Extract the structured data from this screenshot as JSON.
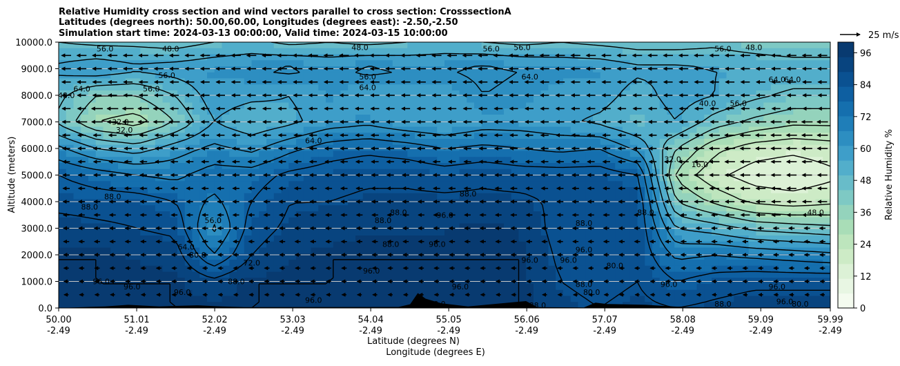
{
  "chart_data": {
    "type": "contourf",
    "title": [
      "Relative Humidity cross section and wind vectors parallel to cross section: CrosssectionA",
      "Latitudes (degrees north): 50.00,60.00, Longitudes (degrees east): -2.50,-2.50",
      "Simulation start time: 2024-03-13 00:00:00, Valid time: 2024-03-15 10:00:00"
    ],
    "xlabel": [
      "Latitude (degrees N)",
      "Longitude (degrees E)"
    ],
    "ylabel": "Altitude (meters)",
    "xlim": [
      50.0,
      59.99
    ],
    "ylim": [
      0,
      10000
    ],
    "x_ticks": [
      {
        "lat": "50.00",
        "lon": "-2.49",
        "value": 50.0
      },
      {
        "lat": "51.01",
        "lon": "-2.49",
        "value": 51.01
      },
      {
        "lat": "52.02",
        "lon": "-2.49",
        "value": 52.02
      },
      {
        "lat": "53.03",
        "lon": "-2.49",
        "value": 53.03
      },
      {
        "lat": "54.04",
        "lon": "-2.49",
        "value": 54.04
      },
      {
        "lat": "55.05",
        "lon": "-2.49",
        "value": 55.05
      },
      {
        "lat": "56.06",
        "lon": "-2.49",
        "value": 56.06
      },
      {
        "lat": "57.07",
        "lon": "-2.49",
        "value": 57.07
      },
      {
        "lat": "58.08",
        "lon": "-2.49",
        "value": 58.08
      },
      {
        "lat": "59.09",
        "lon": "-2.49",
        "value": 59.09
      },
      {
        "lat": "59.99",
        "lon": "-2.49",
        "value": 59.99
      }
    ],
    "y_ticks": [
      {
        "label": "0.0",
        "value": 0
      },
      {
        "label": "1000.0",
        "value": 1000
      },
      {
        "label": "2000.0",
        "value": 2000
      },
      {
        "label": "3000.0",
        "value": 3000
      },
      {
        "label": "4000.0",
        "value": 4000
      },
      {
        "label": "5000.0",
        "value": 5000
      },
      {
        "label": "6000.0",
        "value": 6000
      },
      {
        "label": "7000.0",
        "value": 7000
      },
      {
        "label": "8000.0",
        "value": 8000
      },
      {
        "label": "9000.0",
        "value": 9000
      },
      {
        "label": "10000.0",
        "value": 10000
      }
    ],
    "colorbar": {
      "label": "Relative Humidity %",
      "min": 0,
      "max": 100,
      "ticks": [
        0,
        12,
        24,
        36,
        48,
        60,
        72,
        84,
        96
      ],
      "colors": [
        "#f4fbef",
        "#e8f6e3",
        "#dcf1d6",
        "#cdebc6",
        "#bde5bd",
        "#a9ddb7",
        "#94d3bc",
        "#7ec9c4",
        "#68bcc9",
        "#52aecb",
        "#3e9ec9",
        "#2d8ec1",
        "#1f7eb8",
        "#156fae",
        "#0e5fa1",
        "#0a5191",
        "#08447f",
        "#083a70"
      ]
    },
    "reference_vector": {
      "label": "25 m/s",
      "speed": 25
    },
    "rh_columns": {
      "lat": [
        50.0,
        50.5,
        51.0,
        51.5,
        52.0,
        52.5,
        53.0,
        53.5,
        54.0,
        54.5,
        55.0,
        55.5,
        56.0,
        56.5,
        57.0,
        57.5,
        58.0,
        58.5,
        59.0,
        59.5,
        59.99
      ],
      "altitude": [
        0,
        1000,
        2000,
        3000,
        4000,
        5000,
        6000,
        7000,
        8000,
        9000,
        10000
      ],
      "rh": [
        [
          96,
          96,
          96,
          92,
          85,
          80,
          66,
          46,
          50,
          58,
          48
        ],
        [
          96,
          96,
          96,
          90,
          84,
          76,
          56,
          32,
          40,
          62,
          46
        ],
        [
          96,
          96,
          94,
          88,
          84,
          72,
          52,
          28,
          40,
          58,
          46
        ],
        [
          96,
          96,
          92,
          86,
          80,
          70,
          60,
          40,
          48,
          60,
          44
        ],
        [
          96,
          90,
          72,
          62,
          70,
          76,
          66,
          56,
          60,
          62,
          48
        ],
        [
          96,
          96,
          88,
          84,
          80,
          76,
          62,
          50,
          58,
          64,
          50
        ],
        [
          96,
          96,
          94,
          90,
          88,
          82,
          70,
          54,
          56,
          66,
          46
        ],
        [
          96,
          96,
          96,
          92,
          88,
          84,
          76,
          60,
          62,
          62,
          48
        ],
        [
          96,
          96,
          96,
          94,
          90,
          86,
          78,
          62,
          58,
          66,
          46
        ],
        [
          96,
          96,
          96,
          94,
          90,
          86,
          76,
          58,
          60,
          64,
          48
        ],
        [
          96,
          96,
          96,
          94,
          90,
          84,
          72,
          56,
          58,
          64,
          50
        ],
        [
          96,
          96,
          96,
          96,
          90,
          86,
          74,
          60,
          64,
          66,
          48
        ],
        [
          96,
          96,
          96,
          94,
          90,
          84,
          72,
          60,
          62,
          64,
          46
        ],
        [
          90,
          88,
          86,
          84,
          86,
          84,
          70,
          58,
          60,
          62,
          48
        ],
        [
          88,
          86,
          84,
          86,
          88,
          84,
          72,
          54,
          60,
          62,
          46
        ],
        [
          90,
          88,
          86,
          86,
          86,
          80,
          62,
          48,
          52,
          58,
          44
        ],
        [
          88,
          80,
          70,
          56,
          40,
          30,
          40,
          56,
          60,
          58,
          44
        ],
        [
          90,
          84,
          72,
          52,
          30,
          18,
          26,
          44,
          56,
          56,
          46
        ],
        [
          92,
          86,
          70,
          46,
          22,
          12,
          20,
          38,
          50,
          56,
          42
        ],
        [
          92,
          86,
          68,
          44,
          20,
          10,
          18,
          34,
          46,
          54,
          40
        ],
        [
          92,
          86,
          66,
          42,
          22,
          14,
          20,
          34,
          46,
          54,
          40
        ]
      ]
    },
    "contour_labels": [
      {
        "text": "56.0",
        "lat": 50.6,
        "alt": 9750
      },
      {
        "text": "48.0",
        "lat": 51.45,
        "alt": 9750
      },
      {
        "text": "48.0",
        "lat": 53.9,
        "alt": 9800
      },
      {
        "text": "56.0",
        "lat": 55.6,
        "alt": 9750
      },
      {
        "text": "56.0",
        "lat": 56.0,
        "alt": 9800
      },
      {
        "text": "56.0",
        "lat": 58.6,
        "alt": 9750
      },
      {
        "text": "48.0",
        "lat": 59.0,
        "alt": 9800
      },
      {
        "text": "56.0",
        "lat": 51.4,
        "alt": 8750
      },
      {
        "text": "56.0",
        "lat": 51.2,
        "alt": 8250
      },
      {
        "text": "56.0",
        "lat": 54.0,
        "alt": 8700
      },
      {
        "text": "64.0",
        "lat": 54.0,
        "alt": 8300
      },
      {
        "text": "64.0",
        "lat": 50.3,
        "alt": 8250
      },
      {
        "text": "48.0",
        "lat": 50.1,
        "alt": 8000
      },
      {
        "text": "64.0",
        "lat": 56.1,
        "alt": 8700
      },
      {
        "text": "64.0",
        "lat": 59.3,
        "alt": 8600
      },
      {
        "text": "64.0",
        "lat": 59.5,
        "alt": 8600
      },
      {
        "text": "56.0",
        "lat": 58.8,
        "alt": 7700
      },
      {
        "text": "40.0",
        "lat": 58.4,
        "alt": 7700
      },
      {
        "text": "32.0",
        "lat": 50.8,
        "alt": 7000
      },
      {
        "text": "32.0",
        "lat": 50.85,
        "alt": 6700
      },
      {
        "text": "64.0",
        "lat": 53.3,
        "alt": 6300
      },
      {
        "text": "16.0",
        "lat": 58.3,
        "alt": 5400
      },
      {
        "text": "32.0",
        "lat": 57.95,
        "alt": 5600
      },
      {
        "text": "88.0",
        "lat": 50.7,
        "alt": 4200
      },
      {
        "text": "88.0",
        "lat": 50.4,
        "alt": 3800
      },
      {
        "text": "88.0",
        "lat": 54.4,
        "alt": 3600
      },
      {
        "text": "88.0",
        "lat": 54.2,
        "alt": 3300
      },
      {
        "text": "88.0",
        "lat": 55.3,
        "alt": 4300
      },
      {
        "text": "96.0",
        "lat": 55.0,
        "alt": 3500
      },
      {
        "text": "88.0",
        "lat": 54.3,
        "alt": 2400
      },
      {
        "text": "88.0",
        "lat": 57.6,
        "alt": 3600
      },
      {
        "text": "88.0",
        "lat": 56.8,
        "alt": 3200
      },
      {
        "text": "48.0",
        "lat": 59.8,
        "alt": 3600
      },
      {
        "text": "56.0",
        "lat": 52.0,
        "alt": 3300
      },
      {
        "text": "64.0",
        "lat": 51.65,
        "alt": 2300
      },
      {
        "text": "80.0",
        "lat": 51.8,
        "alt": 2000
      },
      {
        "text": "72.0",
        "lat": 52.5,
        "alt": 1700
      },
      {
        "text": "96.0",
        "lat": 54.9,
        "alt": 2400
      },
      {
        "text": "96.0",
        "lat": 56.1,
        "alt": 1800
      },
      {
        "text": "96.0",
        "lat": 56.6,
        "alt": 1800
      },
      {
        "text": "96.0",
        "lat": 56.8,
        "alt": 2200
      },
      {
        "text": "80.0",
        "lat": 57.2,
        "alt": 1600
      },
      {
        "text": "96.0",
        "lat": 50.55,
        "alt": 1000
      },
      {
        "text": "96.0",
        "lat": 50.95,
        "alt": 800
      },
      {
        "text": "96.0",
        "lat": 51.6,
        "alt": 600
      },
      {
        "text": "96.0",
        "lat": 54.05,
        "alt": 1400
      },
      {
        "text": "96.0",
        "lat": 55.2,
        "alt": 800
      },
      {
        "text": "88.0",
        "lat": 56.8,
        "alt": 900
      },
      {
        "text": "80.0",
        "lat": 56.9,
        "alt": 600
      },
      {
        "text": "96.0",
        "lat": 59.3,
        "alt": 800
      },
      {
        "text": "96.0",
        "lat": 59.4,
        "alt": 250
      },
      {
        "text": "80.0",
        "lat": 59.6,
        "alt": 150
      },
      {
        "text": "88.0",
        "lat": 58.6,
        "alt": 150
      },
      {
        "text": "96.0",
        "lat": 57.9,
        "alt": 900
      },
      {
        "text": "96.0",
        "lat": 53.3,
        "alt": 300
      },
      {
        "text": "88.0",
        "lat": 54.9,
        "alt": 150
      },
      {
        "text": "88.0",
        "lat": 56.2,
        "alt": 100
      },
      {
        "text": "88.0",
        "lat": 52.3,
        "alt": 1000
      }
    ],
    "terrain": [
      {
        "lat": 50.0,
        "alt": 0
      },
      {
        "lat": 50.6,
        "alt": 60
      },
      {
        "lat": 50.9,
        "alt": 120
      },
      {
        "lat": 51.3,
        "alt": 60
      },
      {
        "lat": 51.8,
        "alt": 100
      },
      {
        "lat": 52.1,
        "alt": 60
      },
      {
        "lat": 52.4,
        "alt": 30
      },
      {
        "lat": 54.4,
        "alt": 40
      },
      {
        "lat": 54.55,
        "alt": 140
      },
      {
        "lat": 54.65,
        "alt": 560
      },
      {
        "lat": 54.75,
        "alt": 350
      },
      {
        "lat": 54.95,
        "alt": 180
      },
      {
        "lat": 55.3,
        "alt": 60
      },
      {
        "lat": 55.9,
        "alt": 220
      },
      {
        "lat": 56.05,
        "alt": 260
      },
      {
        "lat": 56.2,
        "alt": 30
      },
      {
        "lat": 56.8,
        "alt": 20
      },
      {
        "lat": 56.95,
        "alt": 200
      },
      {
        "lat": 57.1,
        "alt": 150
      },
      {
        "lat": 57.6,
        "alt": 120
      },
      {
        "lat": 58.1,
        "alt": 30
      },
      {
        "lat": 58.8,
        "alt": 20
      },
      {
        "lat": 59.99,
        "alt": 20
      }
    ]
  }
}
